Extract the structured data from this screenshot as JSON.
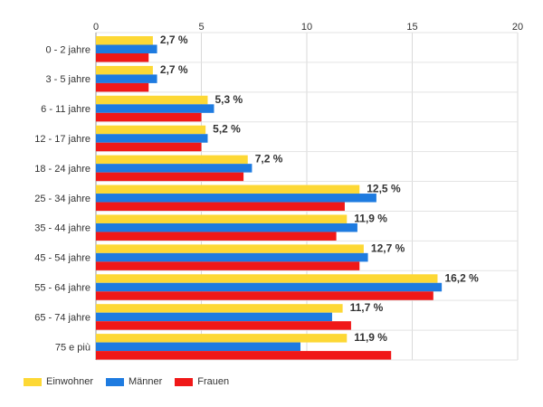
{
  "chart_data": {
    "type": "bar",
    "orientation": "horizontal",
    "categories": [
      "0 - 2 jahre",
      "3 - 5 jahre",
      "6 - 11 jahre",
      "12 - 17 jahre",
      "18 - 24 jahre",
      "25 - 34 jahre",
      "35 - 44 jahre",
      "45 - 54 jahre",
      "55 - 64 jahre",
      "65 - 74 jahre",
      "75 e più"
    ],
    "series": [
      {
        "name": "Einwohner",
        "color": "#fdd835",
        "values": [
          2.7,
          2.7,
          5.3,
          5.2,
          7.2,
          12.5,
          11.9,
          12.7,
          16.2,
          11.7,
          11.9
        ]
      },
      {
        "name": "Männer",
        "color": "#1e7be0",
        "values": [
          2.9,
          2.9,
          5.6,
          5.3,
          7.4,
          13.3,
          12.4,
          12.9,
          16.4,
          11.2,
          9.7
        ]
      },
      {
        "name": "Frauen",
        "color": "#f01818",
        "values": [
          2.5,
          2.5,
          5.0,
          5.0,
          7.0,
          11.8,
          11.4,
          12.5,
          16.0,
          12.1,
          14.0
        ]
      }
    ],
    "data_labels": [
      "2,7 %",
      "2,7 %",
      "5,3 %",
      "5,2 %",
      "7,2 %",
      "12,5 %",
      "11,9 %",
      "12,7 %",
      "16,2 %",
      "11,7 %",
      "11,9 %"
    ],
    "xlim": [
      0,
      20
    ],
    "x_ticks": [
      0,
      5,
      10,
      15,
      20
    ],
    "x_axis_position": "top",
    "grid": true,
    "legend_position": "bottom-left",
    "title": "",
    "xlabel": "",
    "ylabel": ""
  }
}
